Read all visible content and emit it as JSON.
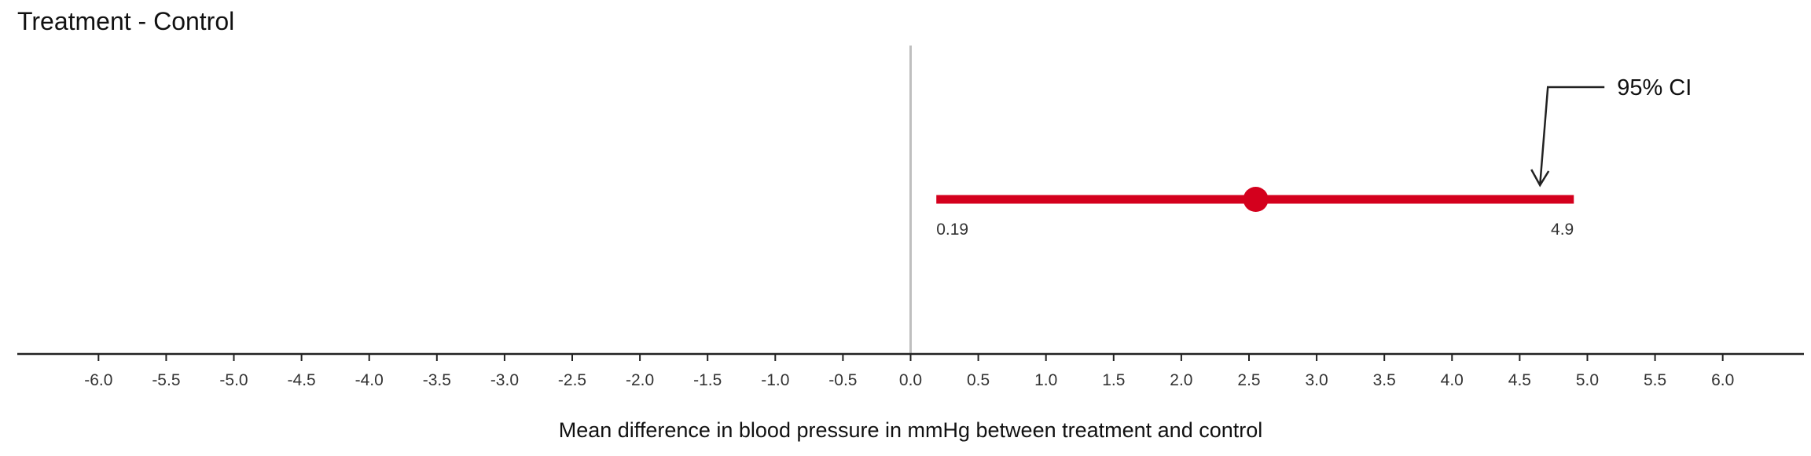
{
  "chart_data": {
    "type": "forest",
    "title": "Treatment - Control",
    "xlabel": "Mean difference in blood pressure in mmHg between treatment and control",
    "ylabel": "",
    "xlim": [
      -6.6,
      6.6
    ],
    "xticks": [
      "-6.0",
      "-5.5",
      "-5.0",
      "-4.5",
      "-4.0",
      "-3.5",
      "-3.0",
      "-2.5",
      "-2.0",
      "-1.5",
      "-1.0",
      "-0.5",
      "0.0",
      "0.5",
      "1.0",
      "1.5",
      "2.0",
      "2.5",
      "3.0",
      "3.5",
      "4.0",
      "4.5",
      "5.0",
      "5.5",
      "6.0"
    ],
    "reference_line": 0,
    "estimate": {
      "point": 2.55,
      "lower": 0.19,
      "upper": 4.9,
      "lower_label": "0.19",
      "upper_label": "4.9"
    },
    "annotation": {
      "text": "95% CI",
      "points_to": 4.65
    },
    "colors": {
      "interval": "#d4001d",
      "axis": "#222222",
      "reference": "#bfbfbf",
      "annotation": "#222222"
    },
    "grid": false,
    "legend": "none"
  }
}
